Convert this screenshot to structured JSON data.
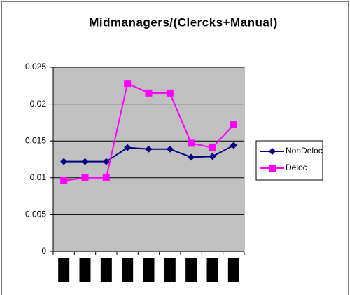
{
  "chart_data": {
    "type": "line",
    "title": "Midmanagers/(Clercks+Manual)",
    "categories": [
      null,
      null,
      null,
      null,
      null,
      null,
      null,
      null,
      null
    ],
    "series": [
      {
        "name": "NonDeloc",
        "color": "#000080",
        "marker": "diamond",
        "values": [
          0.0122,
          0.0122,
          0.0122,
          0.0141,
          0.0139,
          0.0139,
          0.0128,
          0.0129,
          0.0144
        ]
      },
      {
        "name": "Deloc",
        "color": "#ff00ff",
        "marker": "square",
        "values": [
          0.0096,
          0.01,
          0.01,
          0.0228,
          0.0215,
          0.0215,
          0.0147,
          0.0141,
          0.0172
        ]
      }
    ],
    "ylim": [
      0,
      0.025
    ],
    "yticks": [
      0,
      0.005,
      0.01,
      0.015,
      0.02,
      0.025
    ],
    "grid": true,
    "legend": "right"
  }
}
